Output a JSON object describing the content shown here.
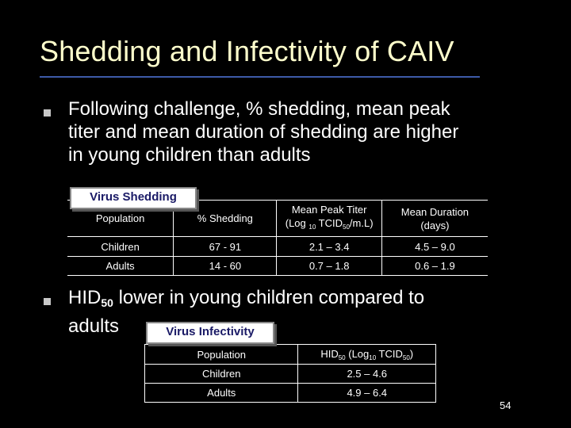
{
  "slide": {
    "title": "Shedding and Infectivity of CAIV",
    "page_number": "54"
  },
  "bullet1": {
    "lines": [
      "Following challenge, % shedding, mean peak",
      "titer and mean duration of shedding are higher",
      "in young children than adults"
    ]
  },
  "shedding_table": {
    "label": "Virus Shedding",
    "headers": {
      "population": "Population",
      "shedding": "% Shedding",
      "titer_line1": "Mean Peak Titer",
      "titer_line2_pre": "(Log ",
      "titer_sub1": "10",
      "titer_mid": " TCID",
      "titer_sub2": "50",
      "titer_post": "/m.L)",
      "duration_line1": "Mean Duration",
      "duration_line2": "(days)"
    },
    "rows": [
      {
        "population": "Children",
        "shedding": "67 - 91",
        "titer": "2.1 – 3.4",
        "duration": "4.5 – 9.0"
      },
      {
        "population": "Adults",
        "shedding": "14 - 60",
        "titer": "0.7 – 1.8",
        "duration": "0.6 – 1.9"
      }
    ]
  },
  "bullet2": {
    "pre": "HID",
    "sub": "50",
    "post": " lower in young children compared to",
    "line2": "adults"
  },
  "infectivity_table": {
    "label": "Virus Infectivity",
    "headers": {
      "population": "Population",
      "hid_pre": "HID",
      "hid_sub1": "50",
      "hid_mid": " (Log",
      "hid_sub2": "10",
      "hid_mid2": " TCID",
      "hid_sub3": "50",
      "hid_post": ")"
    },
    "rows": [
      {
        "population": "Children",
        "value": "2.5 – 4.6"
      },
      {
        "population": "Adults",
        "value": "4.9 – 6.4"
      }
    ]
  }
}
